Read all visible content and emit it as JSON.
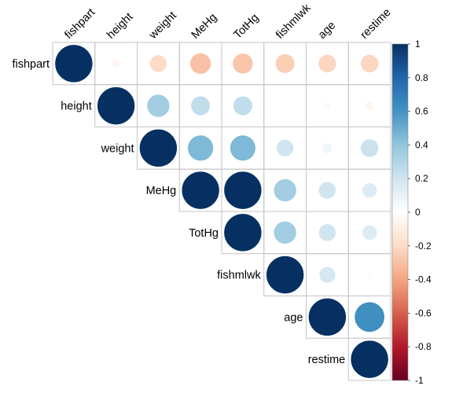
{
  "chart_data": {
    "type": "heatmap",
    "style": "correlation circle plot, upper triangle",
    "variables": [
      "fishpart",
      "height",
      "weight",
      "MeHg",
      "TotHg",
      "fishmlwk",
      "age",
      "restime"
    ],
    "matrix": [
      [
        1.0,
        -0.05,
        -0.2,
        -0.3,
        -0.28,
        -0.25,
        -0.22,
        -0.22
      ],
      [
        null,
        1.0,
        0.35,
        0.25,
        0.25,
        0.01,
        0.03,
        -0.05
      ],
      [
        null,
        null,
        1.0,
        0.45,
        0.45,
        0.2,
        0.07,
        0.22
      ],
      [
        null,
        null,
        null,
        1.0,
        1.0,
        0.35,
        0.2,
        0.15
      ],
      [
        null,
        null,
        null,
        null,
        1.0,
        0.35,
        0.2,
        0.15
      ],
      [
        null,
        null,
        null,
        null,
        null,
        1.0,
        0.18,
        0.02
      ],
      [
        null,
        null,
        null,
        null,
        null,
        null,
        1.0,
        0.62
      ],
      [
        null,
        null,
        null,
        null,
        null,
        null,
        null,
        1.0
      ]
    ],
    "colorbar": {
      "range": [
        -1,
        1
      ],
      "ticks": [
        "1",
        "0.8",
        "0.6",
        "0.4",
        "0.2",
        "0",
        "-0.2",
        "-0.4",
        "-0.6",
        "-0.8",
        "-1"
      ],
      "colors": {
        "-1": "#67001f",
        "-0.8": "#b2182b",
        "-0.6": "#d6604d",
        "-0.4": "#f4a582",
        "-0.2": "#fddbc7",
        "0": "#ffffff",
        "0.2": "#d1e5f0",
        "0.4": "#92c5de",
        "0.6": "#4393c3",
        "0.8": "#2166ac",
        "1": "#053061"
      }
    },
    "grid": true,
    "legend_position": "right"
  }
}
